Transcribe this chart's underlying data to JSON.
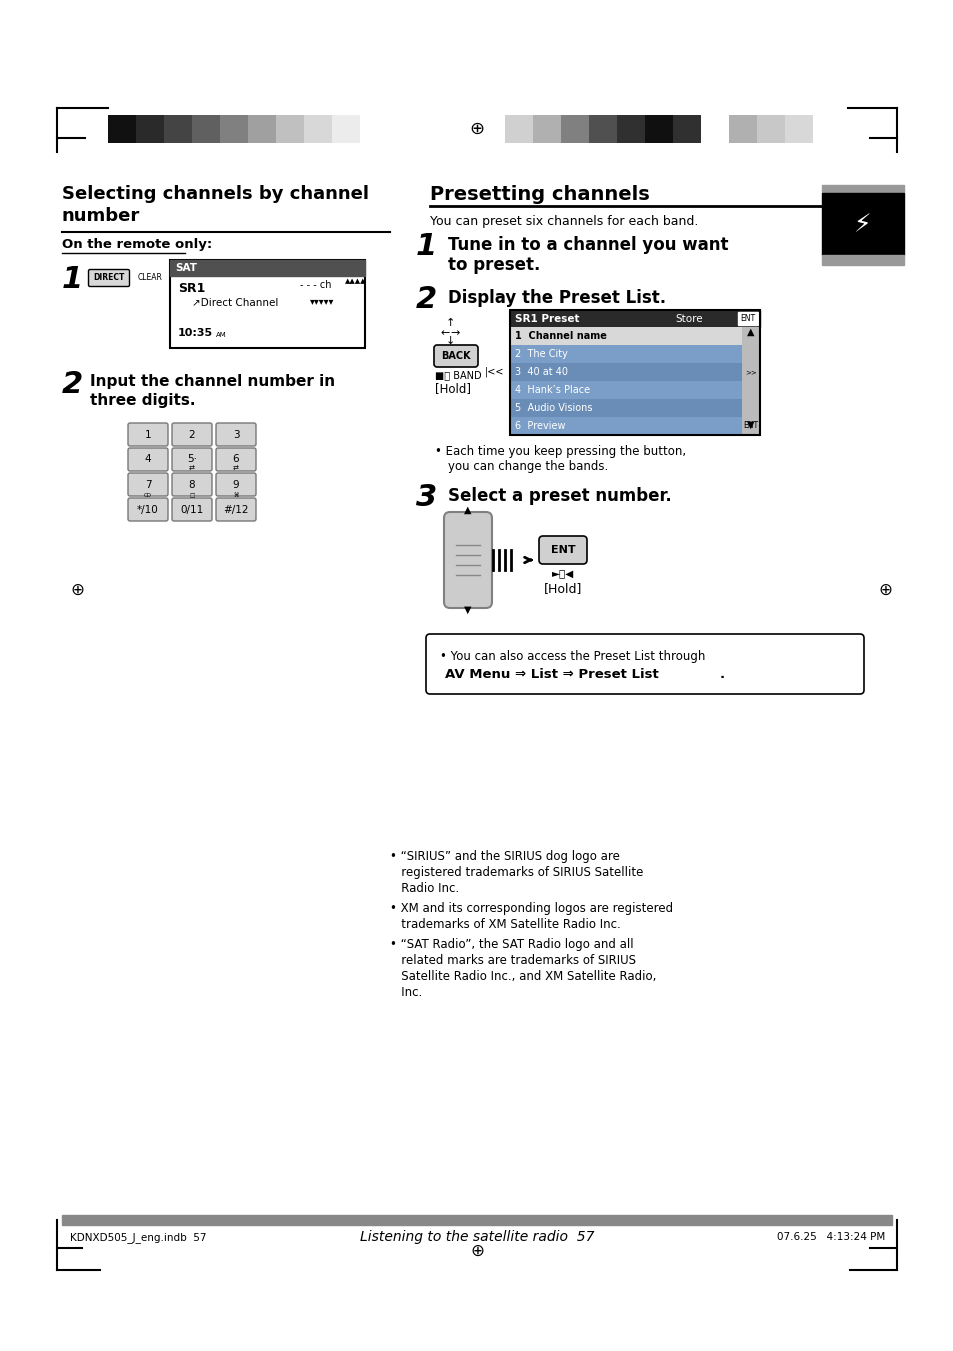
{
  "page_bg": "#ffffff",
  "footer_left": "KDNXD505_J_eng.indb  57",
  "footer_right": "07.6.25   4:13:24 PM",
  "footer_center": "Listening to the satellite radio  57",
  "trademark1": "• “SIRIUS” and the SIRIUS dog logo are",
  "trademark1b": "   registered trademarks of SIRIUS Satellite",
  "trademark1c": "   Radio Inc.",
  "trademark2": "• XM and its corresponding logos are registered",
  "trademark2b": "   trademarks of XM Satellite Radio Inc.",
  "trademark3": "• “SAT Radio”, the SAT Radio logo and all",
  "trademark3b": "   related marks are trademarks of SIRIUS",
  "trademark3c": "   Satellite Radio Inc., and XM Satellite Radio,",
  "trademark3d": "   Inc.",
  "left_bar_colors": [
    "#111111",
    "#2a2a2a",
    "#444444",
    "#606060",
    "#808080",
    "#a0a0a0",
    "#c0c0c0",
    "#d8d8d8",
    "#ececec",
    "#ffffff"
  ],
  "right_bar_colors": [
    "#d0d0d0",
    "#b0b0b0",
    "#808080",
    "#505050",
    "#303030",
    "#101010",
    "#303030",
    "#ffffff",
    "#b0b0b0",
    "#c8c8c8",
    "#d8d8d8"
  ]
}
